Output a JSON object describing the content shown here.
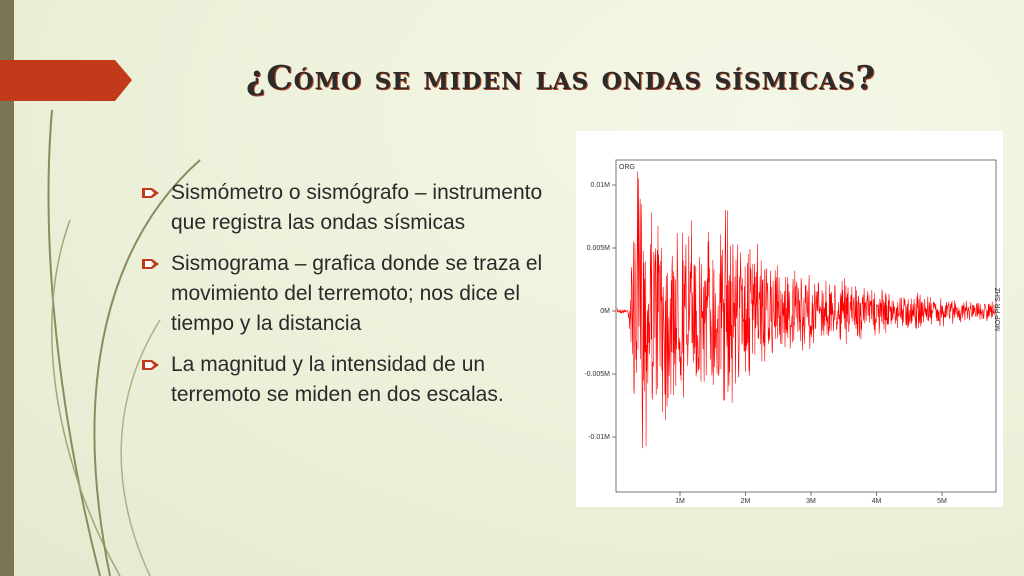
{
  "title": "¿Cómo se miden las ondas sísmicas?",
  "bullets": [
    "Sismómetro o sismógrafo – instrumento que registra las ondas sísmicas",
    "Sismograma – grafica donde se traza el movimiento del terremoto; nos dice el tiempo y la distancia",
    "La magnitud y la intensidad de un terremoto se miden en dos escalas."
  ],
  "figure": {
    "label": "ORG",
    "station": "MOP PR SHZ",
    "yticks": [
      "0.01M",
      "0.005M",
      "0M",
      "-0.005M",
      "-0.01M"
    ],
    "xticks": [
      "1M",
      "2M",
      "3M",
      "4M",
      "5M"
    ]
  }
}
